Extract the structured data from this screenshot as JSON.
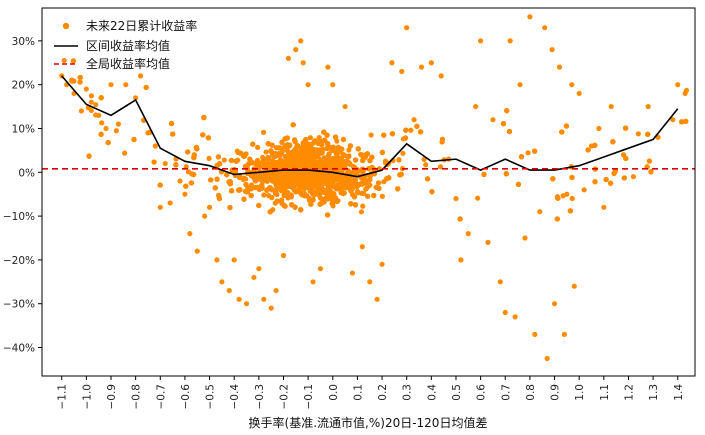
{
  "chart_data": {
    "type": "scatter",
    "xlabel": "换手率(基准.流通市值,%)20日-120日均值差",
    "ylabel": "",
    "xlim": [
      -1.18,
      1.47
    ],
    "ylim": [
      -0.465,
      0.375
    ],
    "x_ticks": [
      -1.1,
      -1.0,
      -0.9,
      -0.8,
      -0.7,
      -0.6,
      -0.5,
      -0.4,
      -0.3,
      -0.2,
      -0.1,
      0.0,
      0.1,
      0.2,
      0.3,
      0.4,
      0.5,
      0.6,
      0.7,
      0.8,
      0.9,
      1.0,
      1.1,
      1.2,
      1.3,
      1.4
    ],
    "x_tick_labels": [
      "−1.1",
      "−1.0",
      "−0.9",
      "−0.8",
      "−0.7",
      "−0.6",
      "−0.5",
      "−0.4",
      "−0.3",
      "−0.2",
      "−0.1",
      "0.0",
      "0.1",
      "0.2",
      "0.3",
      "0.4",
      "0.5",
      "0.6",
      "0.7",
      "0.8",
      "0.9",
      "1.0",
      "1.1",
      "1.2",
      "1.3",
      "1.4"
    ],
    "y_ticks": [
      -0.4,
      -0.3,
      -0.2,
      -0.1,
      0.0,
      0.1,
      0.2,
      0.3
    ],
    "y_tick_labels": [
      "−40%",
      "−30%",
      "−20%",
      "−10%",
      "0%",
      "10%",
      "20%",
      "30%"
    ],
    "grid": false,
    "legend_position": "top-left",
    "series": [
      {
        "name": "未来22日累计收益率",
        "kind": "scatter",
        "color": "#ff8c00",
        "sample_points": [
          [
            -1.1,
            0.22
          ],
          [
            -1.09,
            0.255
          ],
          [
            -1.08,
            0.2
          ],
          [
            -1.05,
            0.18
          ],
          [
            -1.02,
            0.14
          ],
          [
            -1.0,
            0.19
          ],
          [
            -0.98,
            0.16
          ],
          [
            -0.95,
            0.13
          ],
          [
            -0.92,
            0.1
          ],
          [
            -0.9,
            0.2
          ],
          [
            -0.87,
            0.11
          ],
          [
            -0.84,
            0.2
          ],
          [
            -0.8,
            0.17
          ],
          [
            -0.78,
            0.22
          ],
          [
            -0.75,
            0.09
          ],
          [
            -0.72,
            0.06
          ],
          [
            -0.7,
            -0.08
          ],
          [
            -0.68,
            0.02
          ],
          [
            -0.66,
            -0.07
          ],
          [
            -0.62,
            -0.02
          ],
          [
            -0.6,
            -0.05
          ],
          [
            -0.58,
            -0.14
          ],
          [
            -0.55,
            -0.18
          ],
          [
            -0.52,
            -0.1
          ],
          [
            -0.5,
            -0.08
          ],
          [
            -0.47,
            -0.2
          ],
          [
            -0.45,
            -0.25
          ],
          [
            -0.42,
            -0.27
          ],
          [
            -0.4,
            -0.2
          ],
          [
            -0.38,
            -0.29
          ],
          [
            -0.35,
            -0.3
          ],
          [
            -0.32,
            -0.24
          ],
          [
            -0.3,
            -0.22
          ],
          [
            -0.28,
            -0.29
          ],
          [
            -0.25,
            -0.31
          ],
          [
            -0.23,
            -0.27
          ],
          [
            -0.2,
            -0.19
          ],
          [
            -0.18,
            0.26
          ],
          [
            -0.15,
            0.28
          ],
          [
            -0.13,
            0.3
          ],
          [
            -0.12,
            0.25
          ],
          [
            -0.1,
            0.2
          ],
          [
            -0.08,
            -0.25
          ],
          [
            -0.05,
            -0.22
          ],
          [
            -0.02,
            0.24
          ],
          [
            0.0,
            0.2
          ],
          [
            0.05,
            0.15
          ],
          [
            0.08,
            -0.23
          ],
          [
            0.12,
            -0.17
          ],
          [
            0.15,
            -0.25
          ],
          [
            0.18,
            -0.29
          ],
          [
            0.2,
            -0.21
          ],
          [
            0.24,
            0.25
          ],
          [
            0.28,
            0.23
          ],
          [
            0.3,
            0.33
          ],
          [
            0.33,
            0.12
          ],
          [
            0.36,
            0.24
          ],
          [
            0.4,
            0.25
          ],
          [
            0.44,
            0.22
          ],
          [
            0.47,
            0.03
          ],
          [
            0.5,
            -0.06
          ],
          [
            0.52,
            -0.2
          ],
          [
            0.55,
            -0.14
          ],
          [
            0.58,
            0.15
          ],
          [
            0.6,
            0.3
          ],
          [
            0.63,
            -0.16
          ],
          [
            0.65,
            0.12
          ],
          [
            0.68,
            -0.25
          ],
          [
            0.7,
            -0.32
          ],
          [
            0.72,
            0.3
          ],
          [
            0.74,
            -0.33
          ],
          [
            0.76,
            0.2
          ],
          [
            0.78,
            -0.15
          ],
          [
            0.8,
            0.355
          ],
          [
            0.82,
            -0.37
          ],
          [
            0.84,
            -0.09
          ],
          [
            0.86,
            0.33
          ],
          [
            0.87,
            -0.425
          ],
          [
            0.89,
            0.28
          ],
          [
            0.9,
            -0.3
          ],
          [
            0.92,
            0.24
          ],
          [
            0.94,
            -0.37
          ],
          [
            0.95,
            -0.05
          ],
          [
            0.97,
            0.2
          ],
          [
            0.98,
            -0.26
          ],
          [
            1.0,
            0.18
          ],
          [
            1.02,
            -0.04
          ],
          [
            1.05,
            0.06
          ],
          [
            1.08,
            0.1
          ],
          [
            1.1,
            -0.08
          ],
          [
            1.13,
            0.15
          ],
          [
            1.18,
            0.04
          ],
          [
            1.22,
            -0.01
          ],
          [
            1.28,
            0.15
          ],
          [
            1.32,
            0.08
          ],
          [
            1.38,
            0.12
          ],
          [
            1.4,
            0.2
          ],
          [
            1.43,
            0.18
          ]
        ]
      },
      {
        "name": "区间收益率均值",
        "kind": "line",
        "color": "#000000",
        "x": [
          -1.1,
          -1.0,
          -0.9,
          -0.8,
          -0.7,
          -0.6,
          -0.5,
          -0.4,
          -0.3,
          -0.2,
          -0.1,
          0.0,
          0.1,
          0.2,
          0.3,
          0.4,
          0.5,
          0.6,
          0.7,
          0.8,
          0.9,
          1.0,
          1.1,
          1.2,
          1.3,
          1.4
        ],
        "y": [
          0.22,
          0.155,
          0.13,
          0.165,
          0.055,
          0.025,
          0.015,
          -0.005,
          0.0,
          0.005,
          0.005,
          0.0,
          -0.01,
          0.005,
          0.065,
          0.025,
          0.03,
          0.005,
          0.03,
          0.005,
          0.005,
          0.015,
          0.035,
          0.055,
          0.075,
          0.145
        ]
      },
      {
        "name": "全局收益率均值",
        "kind": "hline",
        "color": "#dd0000",
        "y": 0.008
      }
    ],
    "annotations": []
  }
}
